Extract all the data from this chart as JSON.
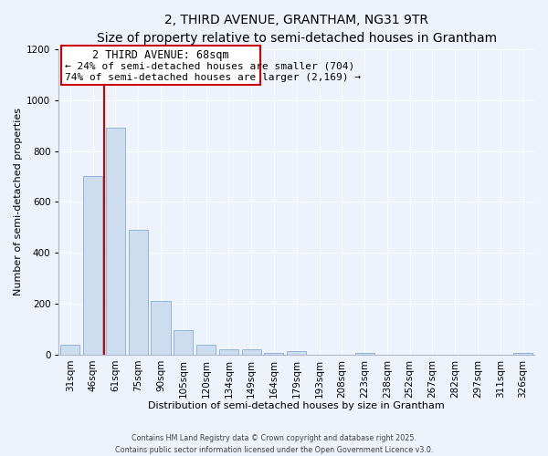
{
  "title": "2, THIRD AVENUE, GRANTHAM, NG31 9TR",
  "subtitle": "Size of property relative to semi-detached houses in Grantham",
  "xlabel": "Distribution of semi-detached houses by size in Grantham",
  "ylabel": "Number of semi-detached properties",
  "bar_labels": [
    "31sqm",
    "46sqm",
    "61sqm",
    "75sqm",
    "90sqm",
    "105sqm",
    "120sqm",
    "134sqm",
    "149sqm",
    "164sqm",
    "179sqm",
    "193sqm",
    "208sqm",
    "223sqm",
    "238sqm",
    "252sqm",
    "267sqm",
    "282sqm",
    "297sqm",
    "311sqm",
    "326sqm"
  ],
  "bar_values": [
    40,
    700,
    890,
    490,
    210,
    95,
    40,
    20,
    20,
    5,
    15,
    0,
    0,
    5,
    0,
    0,
    0,
    0,
    0,
    0,
    5
  ],
  "bar_color": "#ccddf0",
  "bar_edge_color": "#92b4d8",
  "ylim": [
    0,
    1200
  ],
  "yticks": [
    0,
    200,
    400,
    600,
    800,
    1000,
    1200
  ],
  "vline_x": 1.5,
  "vline_color": "#cc0000",
  "annotation_box_color": "#cc0000",
  "annotation_title": "2 THIRD AVENUE: 68sqm",
  "annotation_line1": "← 24% of semi-detached houses are smaller (704)",
  "annotation_line2": "74% of semi-detached houses are larger (2,169) →",
  "footer_line1": "Contains HM Land Registry data © Crown copyright and database right 2025.",
  "footer_line2": "Contains public sector information licensed under the Open Government Licence v3.0.",
  "background_color": "#eef2fb",
  "plot_bg_color": "#eef2fb",
  "grid_color": "#ffffff",
  "title_fontsize": 10,
  "subtitle_fontsize": 9,
  "xlabel_fontsize": 8,
  "ylabel_fontsize": 8,
  "tick_fontsize": 7.5,
  "annotation_title_fontsize": 8.5,
  "annotation_text_fontsize": 8
}
